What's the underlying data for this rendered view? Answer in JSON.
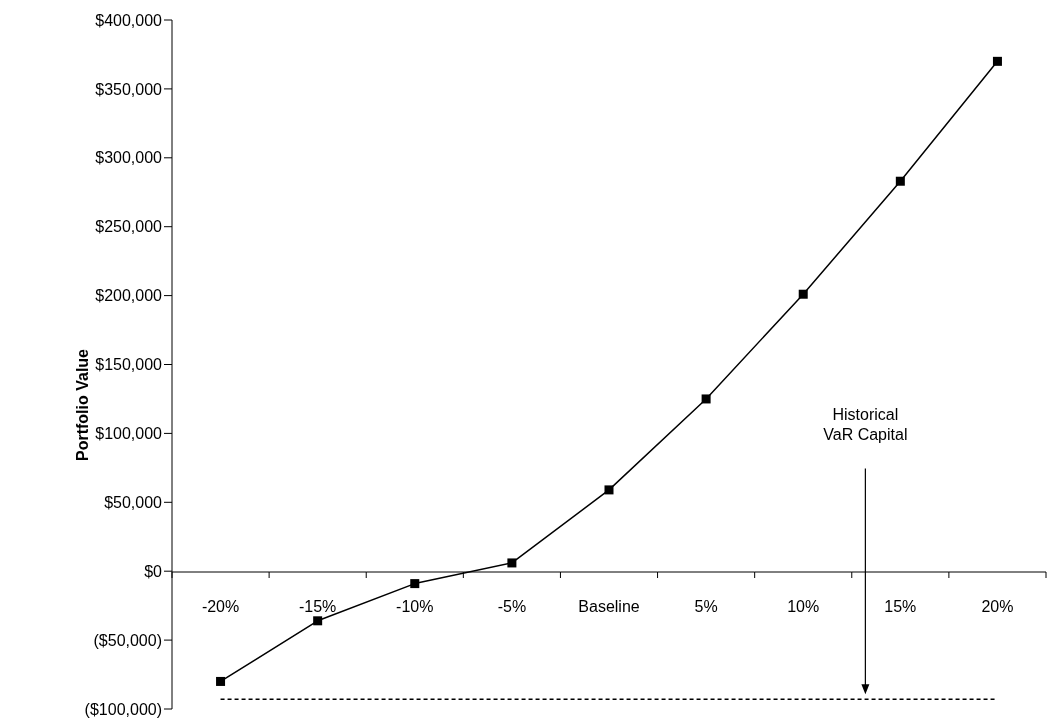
{
  "chart_data": {
    "type": "line",
    "ylabel": "Portfolio Value",
    "categories": [
      "-20%",
      "-15%",
      "-10%",
      "-5%",
      "Baseline",
      "5%",
      "10%",
      "15%",
      "20%"
    ],
    "series": [
      {
        "color": "#000000",
        "values": [
          -80000,
          -36000,
          -9000,
          6000,
          59000,
          125000,
          201000,
          283000,
          370000
        ]
      }
    ],
    "ylim": [
      -100000,
      400000
    ],
    "yticks": [
      {
        "value": -100000,
        "label": "($100,000)"
      },
      {
        "value": -50000,
        "label": "($50,000)"
      },
      {
        "value": 0,
        "label": "$0"
      },
      {
        "value": 50000,
        "label": "$50,000"
      },
      {
        "value": 100000,
        "label": "$100,000"
      },
      {
        "value": 150000,
        "label": "$150,000"
      },
      {
        "value": 200000,
        "label": "$200,000"
      },
      {
        "value": 250000,
        "label": "$250,000"
      },
      {
        "value": 300000,
        "label": "$300,000"
      },
      {
        "value": 350000,
        "label": "$350,000"
      },
      {
        "value": 400000,
        "label": "$400,000"
      }
    ],
    "ref_lines": [
      {
        "axis": "y",
        "value": -93000,
        "label": "Historical VaR Capital",
        "color": "#000000",
        "line_style": "dashed"
      }
    ],
    "marker": "square",
    "line_style": "solid",
    "grid": false,
    "legend": false
  }
}
